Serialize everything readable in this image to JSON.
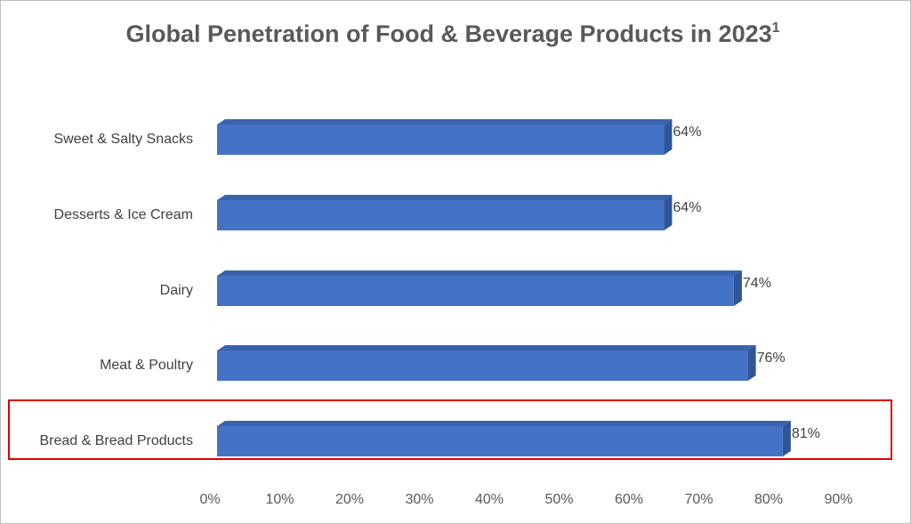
{
  "chart_data": {
    "type": "bar",
    "orientation": "horizontal",
    "style": "3d",
    "title": "Global Penetration of Food & Beverage Products in 2023",
    "title_superscript": "1",
    "categories": [
      "Sweet & Salty Snacks",
      "Desserts & Ice Cream",
      "Dairy",
      "Meat & Poultry",
      "Bread & Bread Products"
    ],
    "values": [
      64,
      64,
      74,
      76,
      81
    ],
    "data_labels": [
      "64%",
      "64%",
      "74%",
      "76%",
      "81%"
    ],
    "x_ticks": [
      "0%",
      "10%",
      "20%",
      "30%",
      "40%",
      "50%",
      "60%",
      "70%",
      "80%",
      "90%"
    ],
    "xlim": [
      0,
      90
    ],
    "grid": false,
    "legend": "none",
    "highlight": {
      "category": "Bread & Bread Products",
      "color": "#e00000"
    },
    "colors": {
      "bar_front": "#4472c4",
      "bar_top": "#3a63ad",
      "bar_side": "#2f5597"
    }
  }
}
